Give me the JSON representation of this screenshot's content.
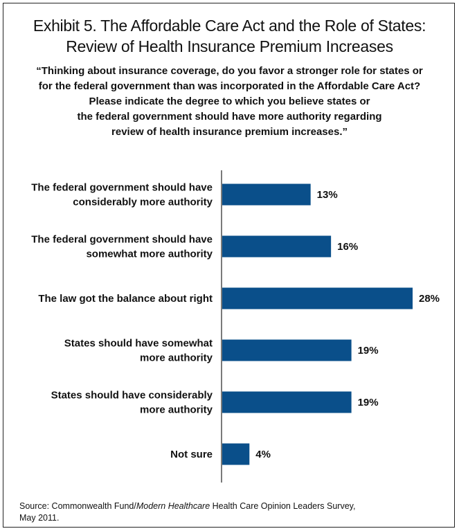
{
  "chart_data": {
    "type": "bar",
    "orientation": "horizontal",
    "title_lines": [
      "Exhibit 5. The Affordable Care Act and the Role of States:",
      "Review of Health Insurance Premium Increases"
    ],
    "subtitle_lines": [
      "“Thinking about insurance coverage, do you favor a stronger role for states or",
      "for the federal government than was incorporated in the Affordable Care Act?",
      "Please indicate the degree to which you believe states or",
      "the federal government should have more authority regarding",
      "review of health insurance premium increases.”"
    ],
    "categories": [
      [
        "The federal government should have",
        "considerably more authority"
      ],
      [
        "The federal government should have",
        "somewhat more authority"
      ],
      [
        "The law got the balance about right"
      ],
      [
        "States should have somewhat",
        "more authority"
      ],
      [
        "States should have considerably",
        "more authority"
      ],
      [
        "Not sure"
      ]
    ],
    "values": [
      13,
      16,
      28,
      19,
      19,
      4
    ],
    "value_labels": [
      "13%",
      "16%",
      "28%",
      "19%",
      "19%",
      "4%"
    ],
    "bar_color": "#0a4f8a",
    "xlim": [
      0,
      28
    ],
    "grid": false,
    "legend": "none"
  },
  "source": {
    "prefix": "Source: Commonwealth Fund/",
    "italic": "Modern Healthcare",
    "suffix": " Health Care Opinion Leaders Survey,",
    "line2": "May 2011."
  }
}
